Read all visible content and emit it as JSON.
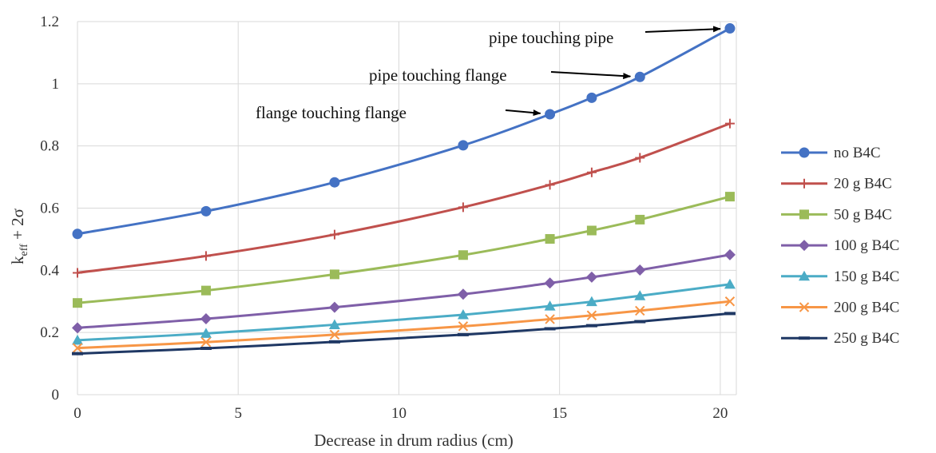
{
  "chart_data": {
    "type": "line",
    "xlabel": "Decrease in drum radius (cm)",
    "ylabel_main": "k",
    "ylabel_sub": "eff",
    "ylabel_rest": " + 2σ",
    "xlim": [
      0,
      20.5
    ],
    "ylim": [
      0,
      1.2
    ],
    "xticks": [
      "0",
      "5",
      "10",
      "15",
      "20"
    ],
    "yticks": [
      "0",
      "0.2",
      "0.4",
      "0.6",
      "0.8",
      "1",
      "1.2"
    ],
    "x": [
      0,
      4,
      8,
      12,
      14.7,
      16,
      17.5,
      20.3
    ],
    "grid": true,
    "legend_position": "right",
    "series": [
      {
        "name": "no B4C",
        "color": "#4472c4",
        "marker": "circle",
        "values": [
          0.517,
          0.59,
          0.683,
          0.802,
          0.902,
          0.955,
          1.022,
          1.178
        ]
      },
      {
        "name": "20 g B4C",
        "color": "#c0504d",
        "marker": "plus",
        "values": [
          0.392,
          0.446,
          0.515,
          0.603,
          0.675,
          0.715,
          0.762,
          0.872
        ]
      },
      {
        "name": "50 g B4C",
        "color": "#9bbb59",
        "marker": "square",
        "values": [
          0.295,
          0.335,
          0.387,
          0.449,
          0.501,
          0.528,
          0.563,
          0.637
        ]
      },
      {
        "name": "100 g B4C",
        "color": "#7f5fa8",
        "marker": "diamond",
        "values": [
          0.215,
          0.244,
          0.281,
          0.323,
          0.359,
          0.378,
          0.401,
          0.45
        ]
      },
      {
        "name": "150 g B4C",
        "color": "#4bacc6",
        "marker": "triangle",
        "values": [
          0.175,
          0.197,
          0.225,
          0.257,
          0.285,
          0.299,
          0.318,
          0.355
        ]
      },
      {
        "name": "200 g B4C",
        "color": "#f79646",
        "marker": "x",
        "values": [
          0.15,
          0.169,
          0.193,
          0.22,
          0.243,
          0.255,
          0.27,
          0.3
        ]
      },
      {
        "name": "250 g B4C",
        "color": "#1f3864",
        "marker": "dash",
        "values": [
          0.132,
          0.149,
          0.17,
          0.193,
          0.212,
          0.222,
          0.235,
          0.261
        ]
      }
    ],
    "annotations": [
      {
        "text": "pipe touching pipe",
        "x": 20.3,
        "y": 1.178
      },
      {
        "text": "pipe touching flange",
        "x": 17.5,
        "y": 1.022
      },
      {
        "text": "flange touching flange",
        "x": 14.7,
        "y": 0.902
      }
    ]
  }
}
